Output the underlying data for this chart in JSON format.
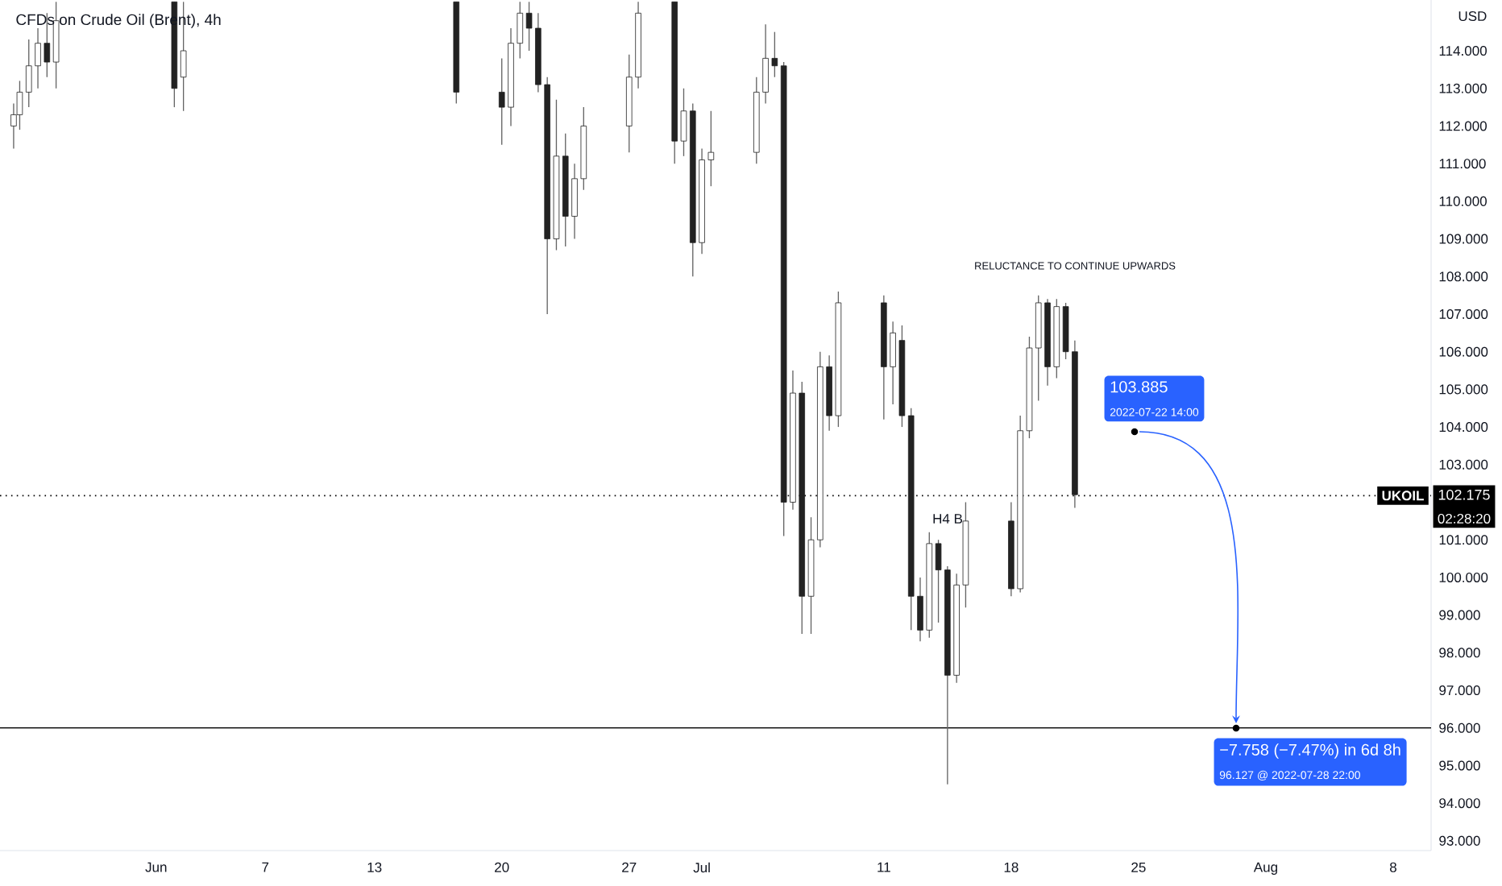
{
  "chart_data": {
    "type": "candlestick",
    "title": "CFDs on Crude Oil (Brent), 4h",
    "ylabel": "USD",
    "color": "#222222",
    "x": [
      "2022-05-24T04:00",
      "2022-05-24T12:00",
      "2022-05-25T00:00",
      "2022-05-25T12:00",
      "2022-05-26T00:00",
      "2022-05-26T12:00",
      "2022-06-02T00:00",
      "2022-06-02T12:00",
      "2022-06-17T12:00",
      "2022-06-20T00:00",
      "2022-06-20T12:00",
      "2022-06-21T00:00",
      "2022-06-21T12:00",
      "2022-06-22T00:00",
      "2022-06-22T12:00",
      "2022-06-23T00:00",
      "2022-06-23T12:00",
      "2022-06-24T00:00",
      "2022-06-24T12:00",
      "2022-06-27T00:00",
      "2022-06-27T12:00",
      "2022-06-29T12:00",
      "2022-06-30T00:00",
      "2022-06-30T12:00",
      "2022-07-01T00:00",
      "2022-07-01T12:00",
      "2022-07-04T00:00",
      "2022-07-04T12:00",
      "2022-07-05T00:00",
      "2022-07-05T12:00",
      "2022-07-06T00:00",
      "2022-07-06T12:00",
      "2022-07-07T00:00",
      "2022-07-07T12:00",
      "2022-07-08T00:00",
      "2022-07-08T12:00",
      "2022-07-11T00:00",
      "2022-07-11T12:00",
      "2022-07-12T00:00",
      "2022-07-12T12:00",
      "2022-07-13T00:00",
      "2022-07-13T12:00",
      "2022-07-14T00:00",
      "2022-07-14T12:00",
      "2022-07-15T00:00",
      "2022-07-15T12:00",
      "2022-07-18T00:00",
      "2022-07-18T12:00",
      "2022-07-19T00:00",
      "2022-07-19T12:00",
      "2022-07-20T00:00",
      "2022-07-20T12:00",
      "2022-07-21T00:00",
      "2022-07-21T12:00"
    ],
    "ohlc": [
      [
        112.0,
        112.6,
        111.4,
        112.3
      ],
      [
        112.3,
        113.2,
        111.9,
        112.9
      ],
      [
        112.9,
        114.3,
        112.5,
        113.6
      ],
      [
        113.6,
        114.6,
        113.0,
        114.2
      ],
      [
        114.2,
        115.0,
        113.3,
        113.7
      ],
      [
        113.7,
        115.3,
        113.0,
        114.8
      ],
      [
        115.3,
        115.3,
        112.5,
        113.0
      ],
      [
        113.3,
        115.3,
        112.4,
        114.0
      ],
      [
        115.3,
        115.3,
        112.6,
        112.9
      ],
      [
        112.9,
        113.8,
        111.5,
        112.5
      ],
      [
        112.5,
        114.6,
        112.0,
        114.2
      ],
      [
        114.2,
        115.3,
        113.8,
        115.0
      ],
      [
        115.0,
        115.3,
        114.0,
        114.6
      ],
      [
        114.6,
        115.0,
        112.9,
        113.1
      ],
      [
        113.1,
        113.3,
        107.0,
        109.0
      ],
      [
        109.0,
        112.7,
        108.7,
        111.2
      ],
      [
        111.2,
        111.8,
        108.8,
        109.6
      ],
      [
        109.6,
        111.0,
        109.0,
        110.6
      ],
      [
        110.6,
        112.5,
        110.3,
        112.0
      ],
      [
        112.0,
        113.9,
        111.3,
        113.3
      ],
      [
        113.3,
        115.3,
        113.0,
        115.0
      ],
      [
        115.3,
        115.3,
        111.0,
        111.6
      ],
      [
        111.6,
        113.0,
        111.2,
        112.4
      ],
      [
        112.4,
        112.6,
        108.0,
        108.9
      ],
      [
        108.9,
        111.4,
        108.6,
        111.1
      ],
      [
        111.1,
        112.4,
        110.4,
        111.3
      ],
      [
        111.3,
        113.3,
        111.0,
        112.9
      ],
      [
        112.9,
        114.7,
        112.6,
        113.8
      ],
      [
        113.8,
        114.5,
        113.3,
        113.6
      ],
      [
        113.6,
        113.7,
        101.1,
        102.0
      ],
      [
        102.0,
        105.5,
        101.8,
        104.9
      ],
      [
        104.9,
        105.2,
        98.5,
        99.5
      ],
      [
        99.5,
        101.6,
        98.5,
        101.0
      ],
      [
        101.0,
        106.0,
        100.8,
        105.6
      ],
      [
        105.6,
        105.9,
        103.9,
        104.3
      ],
      [
        104.3,
        107.6,
        104.0,
        107.3
      ],
      [
        107.3,
        107.5,
        104.2,
        105.6
      ],
      [
        105.6,
        106.8,
        104.6,
        106.5
      ],
      [
        106.3,
        106.7,
        104.0,
        104.3
      ],
      [
        104.3,
        104.5,
        98.6,
        99.5
      ],
      [
        99.5,
        100.0,
        98.3,
        98.6
      ],
      [
        98.6,
        101.2,
        98.4,
        100.9
      ],
      [
        100.9,
        101.0,
        98.8,
        100.2
      ],
      [
        100.2,
        100.3,
        94.5,
        97.4
      ],
      [
        97.4,
        100.1,
        97.2,
        99.8
      ],
      [
        99.8,
        102.0,
        99.2,
        101.5
      ],
      [
        101.5,
        102.0,
        99.5,
        99.7
      ],
      [
        99.7,
        104.3,
        99.6,
        103.9
      ],
      [
        103.9,
        106.4,
        103.7,
        106.1
      ],
      [
        106.1,
        107.5,
        104.7,
        107.3
      ],
      [
        107.3,
        107.4,
        105.1,
        105.6
      ],
      [
        105.6,
        107.4,
        105.3,
        107.2
      ],
      [
        107.2,
        107.3,
        105.8,
        106.0
      ],
      [
        106.0,
        106.3,
        101.85,
        102.2
      ]
    ],
    "xlim": [
      "2022-05-23T10:00",
      "2022-08-10T02:00"
    ],
    "xticks": [
      {
        "value": "2022-06-01",
        "label": "Jun"
      },
      {
        "value": "2022-06-07",
        "label": "7"
      },
      {
        "value": "2022-06-13",
        "label": "13"
      },
      {
        "value": "2022-06-20",
        "label": "20"
      },
      {
        "value": "2022-06-27",
        "label": "27"
      },
      {
        "value": "2022-07-01",
        "label": "Jul"
      },
      {
        "value": "2022-07-11",
        "label": "11"
      },
      {
        "value": "2022-07-18",
        "label": "18"
      },
      {
        "value": "2022-07-25",
        "label": "25"
      },
      {
        "value": "2022-08-01",
        "label": "Aug"
      },
      {
        "value": "2022-08-08",
        "label": "8"
      }
    ],
    "ylim": [
      92.74,
      115.35
    ],
    "yticks": [
      {
        "value": 93,
        "label": "93.000"
      },
      {
        "value": 94,
        "label": "94.000"
      },
      {
        "value": 95,
        "label": "95.000"
      },
      {
        "value": 96,
        "label": "96.000"
      },
      {
        "value": 97,
        "label": "97.000"
      },
      {
        "value": 98,
        "label": "98.000"
      },
      {
        "value": 99,
        "label": "99.000"
      },
      {
        "value": 100,
        "label": "100.000"
      },
      {
        "value": 101,
        "label": "101.000"
      },
      {
        "value": 103,
        "label": "103.000"
      },
      {
        "value": 104,
        "label": "104.000"
      },
      {
        "value": 105,
        "label": "105.000"
      },
      {
        "value": 106,
        "label": "106.000"
      },
      {
        "value": 107,
        "label": "107.000"
      },
      {
        "value": 108,
        "label": "108.000"
      },
      {
        "value": 109,
        "label": "109.000"
      },
      {
        "value": 110,
        "label": "110.000"
      },
      {
        "value": 111,
        "label": "111.000"
      },
      {
        "value": 112,
        "label": "112.000"
      },
      {
        "value": 113,
        "label": "113.000"
      },
      {
        "value": 114,
        "label": "114.000"
      }
    ],
    "ref_lines": [
      {
        "axis": "y",
        "value": 102.175,
        "label": "UKOIL",
        "line_style": "dotted",
        "color": "#000000"
      },
      {
        "axis": "y",
        "value": 96,
        "color": "#000000",
        "line_style": "solid"
      }
    ],
    "annotations": [
      "RELUCTANCE TO CONTINUE UPWARDS",
      "H4 B",
      "103.885",
      "2022-07-22 14:00",
      "−7.758 (−7.47%) in 6d 8h",
      "96.127 @ 2022-07-28  22:00",
      "102.175",
      "02:28:20"
    ]
  }
}
